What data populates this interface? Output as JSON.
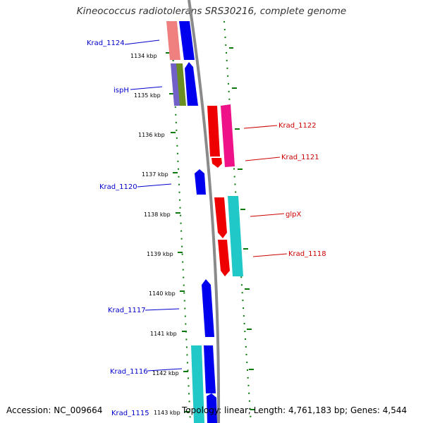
{
  "map": {
    "title": "Kineococcus radiotolerans SRS30216, complete genome",
    "accession": "Accession: NC_009664",
    "footer_info": "Topology: linear; Length: 4,761,183 bp; Genes: 4,544"
  },
  "colors": {
    "backbone": "#888888",
    "ticks": "#0a7a0a",
    "label_left": "#0000cc",
    "label_right": "#cc0000"
  },
  "ticks": [
    {
      "label": "1134 kbp"
    },
    {
      "label": "1135 kbp"
    },
    {
      "label": "1136 kbp"
    },
    {
      "label": "1137 kbp"
    },
    {
      "label": "1138 kbp"
    },
    {
      "label": "1139 kbp"
    },
    {
      "label": "1140 kbp"
    },
    {
      "label": "1141 kbp"
    },
    {
      "label": "1142 kbp"
    },
    {
      "label": "1143 kbp"
    }
  ],
  "gene_labels": [
    {
      "text": "Krad_1124",
      "side": "left"
    },
    {
      "text": "ispH",
      "side": "left"
    },
    {
      "text": "Krad_1122",
      "side": "right"
    },
    {
      "text": "Krad_1121",
      "side": "right"
    },
    {
      "text": "Krad_1120",
      "side": "left"
    },
    {
      "text": "glpX",
      "side": "right"
    },
    {
      "text": "Krad_1118",
      "side": "right"
    },
    {
      "text": "Krad_1117",
      "side": "left"
    },
    {
      "text": "Krad_1116",
      "side": "left"
    },
    {
      "text": "Krad_1115",
      "side": "left"
    }
  ]
}
